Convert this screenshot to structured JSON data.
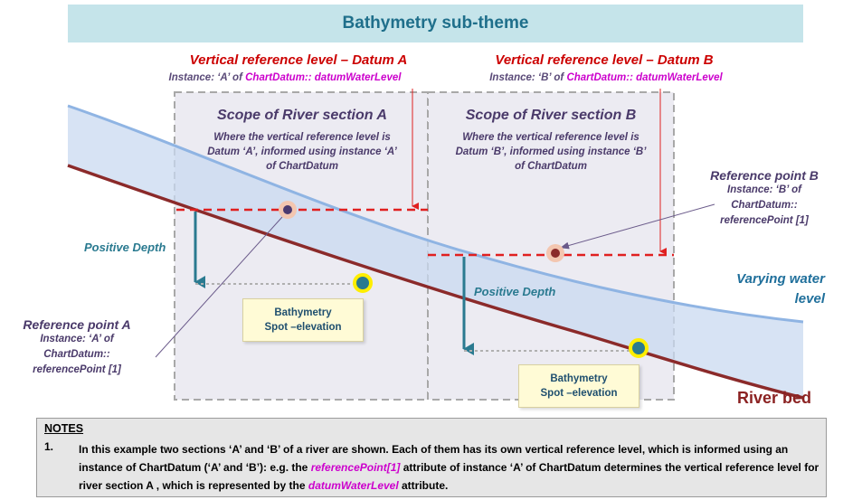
{
  "title": "Bathymetry sub-theme",
  "datum_a": {
    "title": "Vertical reference level – Datum A",
    "instance_pre": "Instance: ‘A’ of ",
    "instance_ref": "ChartDatum:: datumWaterLevel"
  },
  "datum_b": {
    "title": "Vertical reference level – Datum B",
    "instance_pre": "Instance: ‘B’ of ",
    "instance_ref": "ChartDatum:: datumWaterLevel"
  },
  "scope_a": {
    "title": "Scope of River section A",
    "line1": "Where the vertical reference level is",
    "line2": "Datum ‘A’, informed using instance ‘A’",
    "line3": "of ChartDatum"
  },
  "scope_b": {
    "title": "Scope of River section B",
    "line1": "Where the vertical reference level is",
    "line2": "Datum ‘B’, informed using instance ‘B’",
    "line3": "of ChartDatum"
  },
  "ref_point_a": {
    "title": "Reference point A",
    "line1": "Instance: ‘A’ of",
    "line2": "ChartDatum::",
    "line3": "referencePoint [1]"
  },
  "ref_point_b": {
    "title": "Reference point B",
    "line1": "Instance: ‘B’ of",
    "line2": "ChartDatum::",
    "line3": "referencePoint [1]"
  },
  "positive_depth": "Positive Depth",
  "spot_label_line1": "Bathymetry",
  "spot_label_line2": "Spot –elevation",
  "water_label_line1": "Varying water",
  "water_label_line2": "level",
  "river_bed": "River bed",
  "notes": {
    "title": "NOTES",
    "number": "1.",
    "text_1": "In this example two sections ‘A’ and ‘B’ of a river are shown. Each of them has its own vertical reference level, which is informed using an instance of ChartDatum (‘A’ and ‘B’): e.g. the ",
    "ref_attr": "referencePoint[1]",
    "text_2": " attribute of instance ‘A’ of ChartDatum determines the vertical reference level for river section A , which is represented by the ",
    "datum_attr": "datumWaterLevel",
    "text_3": " attribute."
  },
  "colors": {
    "title_bg": "#c5e4ea",
    "water_line": "#8fb4e3",
    "water_fill": "#dbe6f5",
    "river_bed": "#8b2a2a",
    "datum_line": "#e02020",
    "depth_arrow": "#2a7a90",
    "scope_border": "#a8a8a8"
  }
}
